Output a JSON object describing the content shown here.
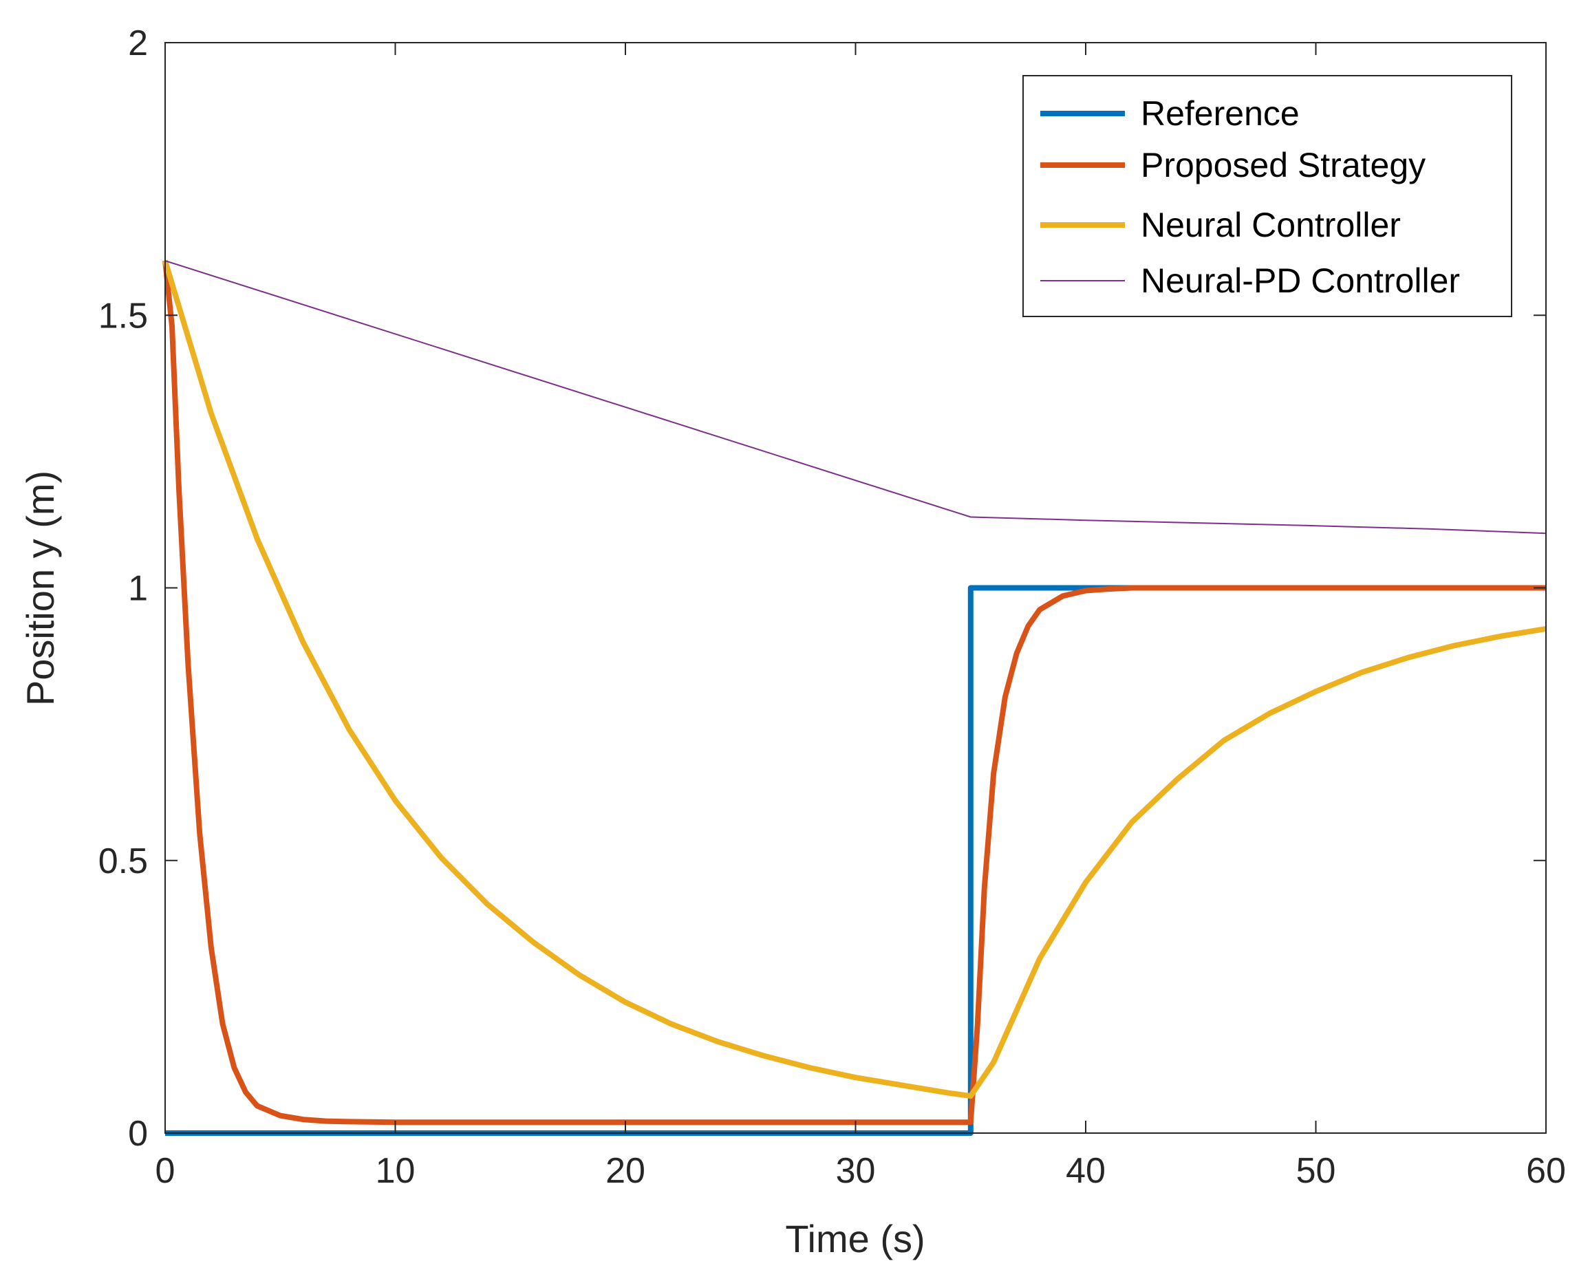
{
  "chart_data": {
    "type": "line",
    "title": "",
    "xlabel": "Time (s)",
    "ylabel": "Position y (m)",
    "xlim": [
      0,
      60
    ],
    "ylim": [
      0,
      2
    ],
    "xticks": [
      0,
      10,
      20,
      30,
      40,
      50,
      60
    ],
    "yticks": [
      0,
      0.5,
      1,
      1.5,
      2
    ],
    "xtick_labels": [
      "0",
      "10",
      "20",
      "30",
      "40",
      "50",
      "60"
    ],
    "ytick_labels": [
      "0",
      "0.5",
      "1",
      "1.5",
      "2"
    ],
    "grid": false,
    "legend_position": "top-right",
    "series": [
      {
        "name": "Reference",
        "color": "#0072BD",
        "line": "thick",
        "x": [
          0,
          35,
          35,
          60
        ],
        "y": [
          0,
          0,
          1,
          1
        ]
      },
      {
        "name": "Proposed Strategy",
        "color": "#D95319",
        "line": "thick",
        "x": [
          0,
          0.3,
          0.6,
          1,
          1.5,
          2,
          2.5,
          3,
          3.5,
          4,
          5,
          6,
          7,
          8,
          10,
          15,
          20,
          25,
          30,
          35,
          35.3,
          35.6,
          36,
          36.5,
          37,
          37.5,
          38,
          39,
          40,
          41,
          42,
          45,
          50,
          55,
          60
        ],
        "y": [
          1.6,
          1.48,
          1.18,
          0.86,
          0.55,
          0.34,
          0.2,
          0.12,
          0.075,
          0.05,
          0.032,
          0.025,
          0.022,
          0.021,
          0.02,
          0.02,
          0.02,
          0.02,
          0.02,
          0.02,
          0.2,
          0.45,
          0.66,
          0.8,
          0.88,
          0.93,
          0.96,
          0.985,
          0.995,
          0.998,
          1.0,
          1.0,
          1.0,
          1.0,
          1.0
        ]
      },
      {
        "name": "Neural Controller",
        "color": "#EDB120",
        "line": "thick",
        "x": [
          0,
          2,
          4,
          6,
          8,
          10,
          12,
          14,
          16,
          18,
          20,
          22,
          24,
          26,
          28,
          30,
          32,
          34,
          35,
          36,
          38,
          40,
          42,
          44,
          46,
          48,
          50,
          52,
          54,
          56,
          58,
          60
        ],
        "y": [
          1.6,
          1.32,
          1.09,
          0.9,
          0.74,
          0.61,
          0.505,
          0.42,
          0.35,
          0.29,
          0.24,
          0.2,
          0.168,
          0.142,
          0.12,
          0.102,
          0.088,
          0.074,
          0.068,
          0.13,
          0.32,
          0.46,
          0.57,
          0.65,
          0.72,
          0.77,
          0.81,
          0.845,
          0.872,
          0.894,
          0.911,
          0.925
        ]
      },
      {
        "name": "Neural-PD Controller",
        "color": "#7E2F8E",
        "line": "thin",
        "x": [
          0,
          35,
          40,
          45,
          50,
          55,
          60
        ],
        "y": [
          1.6,
          1.13,
          1.124,
          1.119,
          1.114,
          1.108,
          1.1
        ]
      }
    ]
  }
}
